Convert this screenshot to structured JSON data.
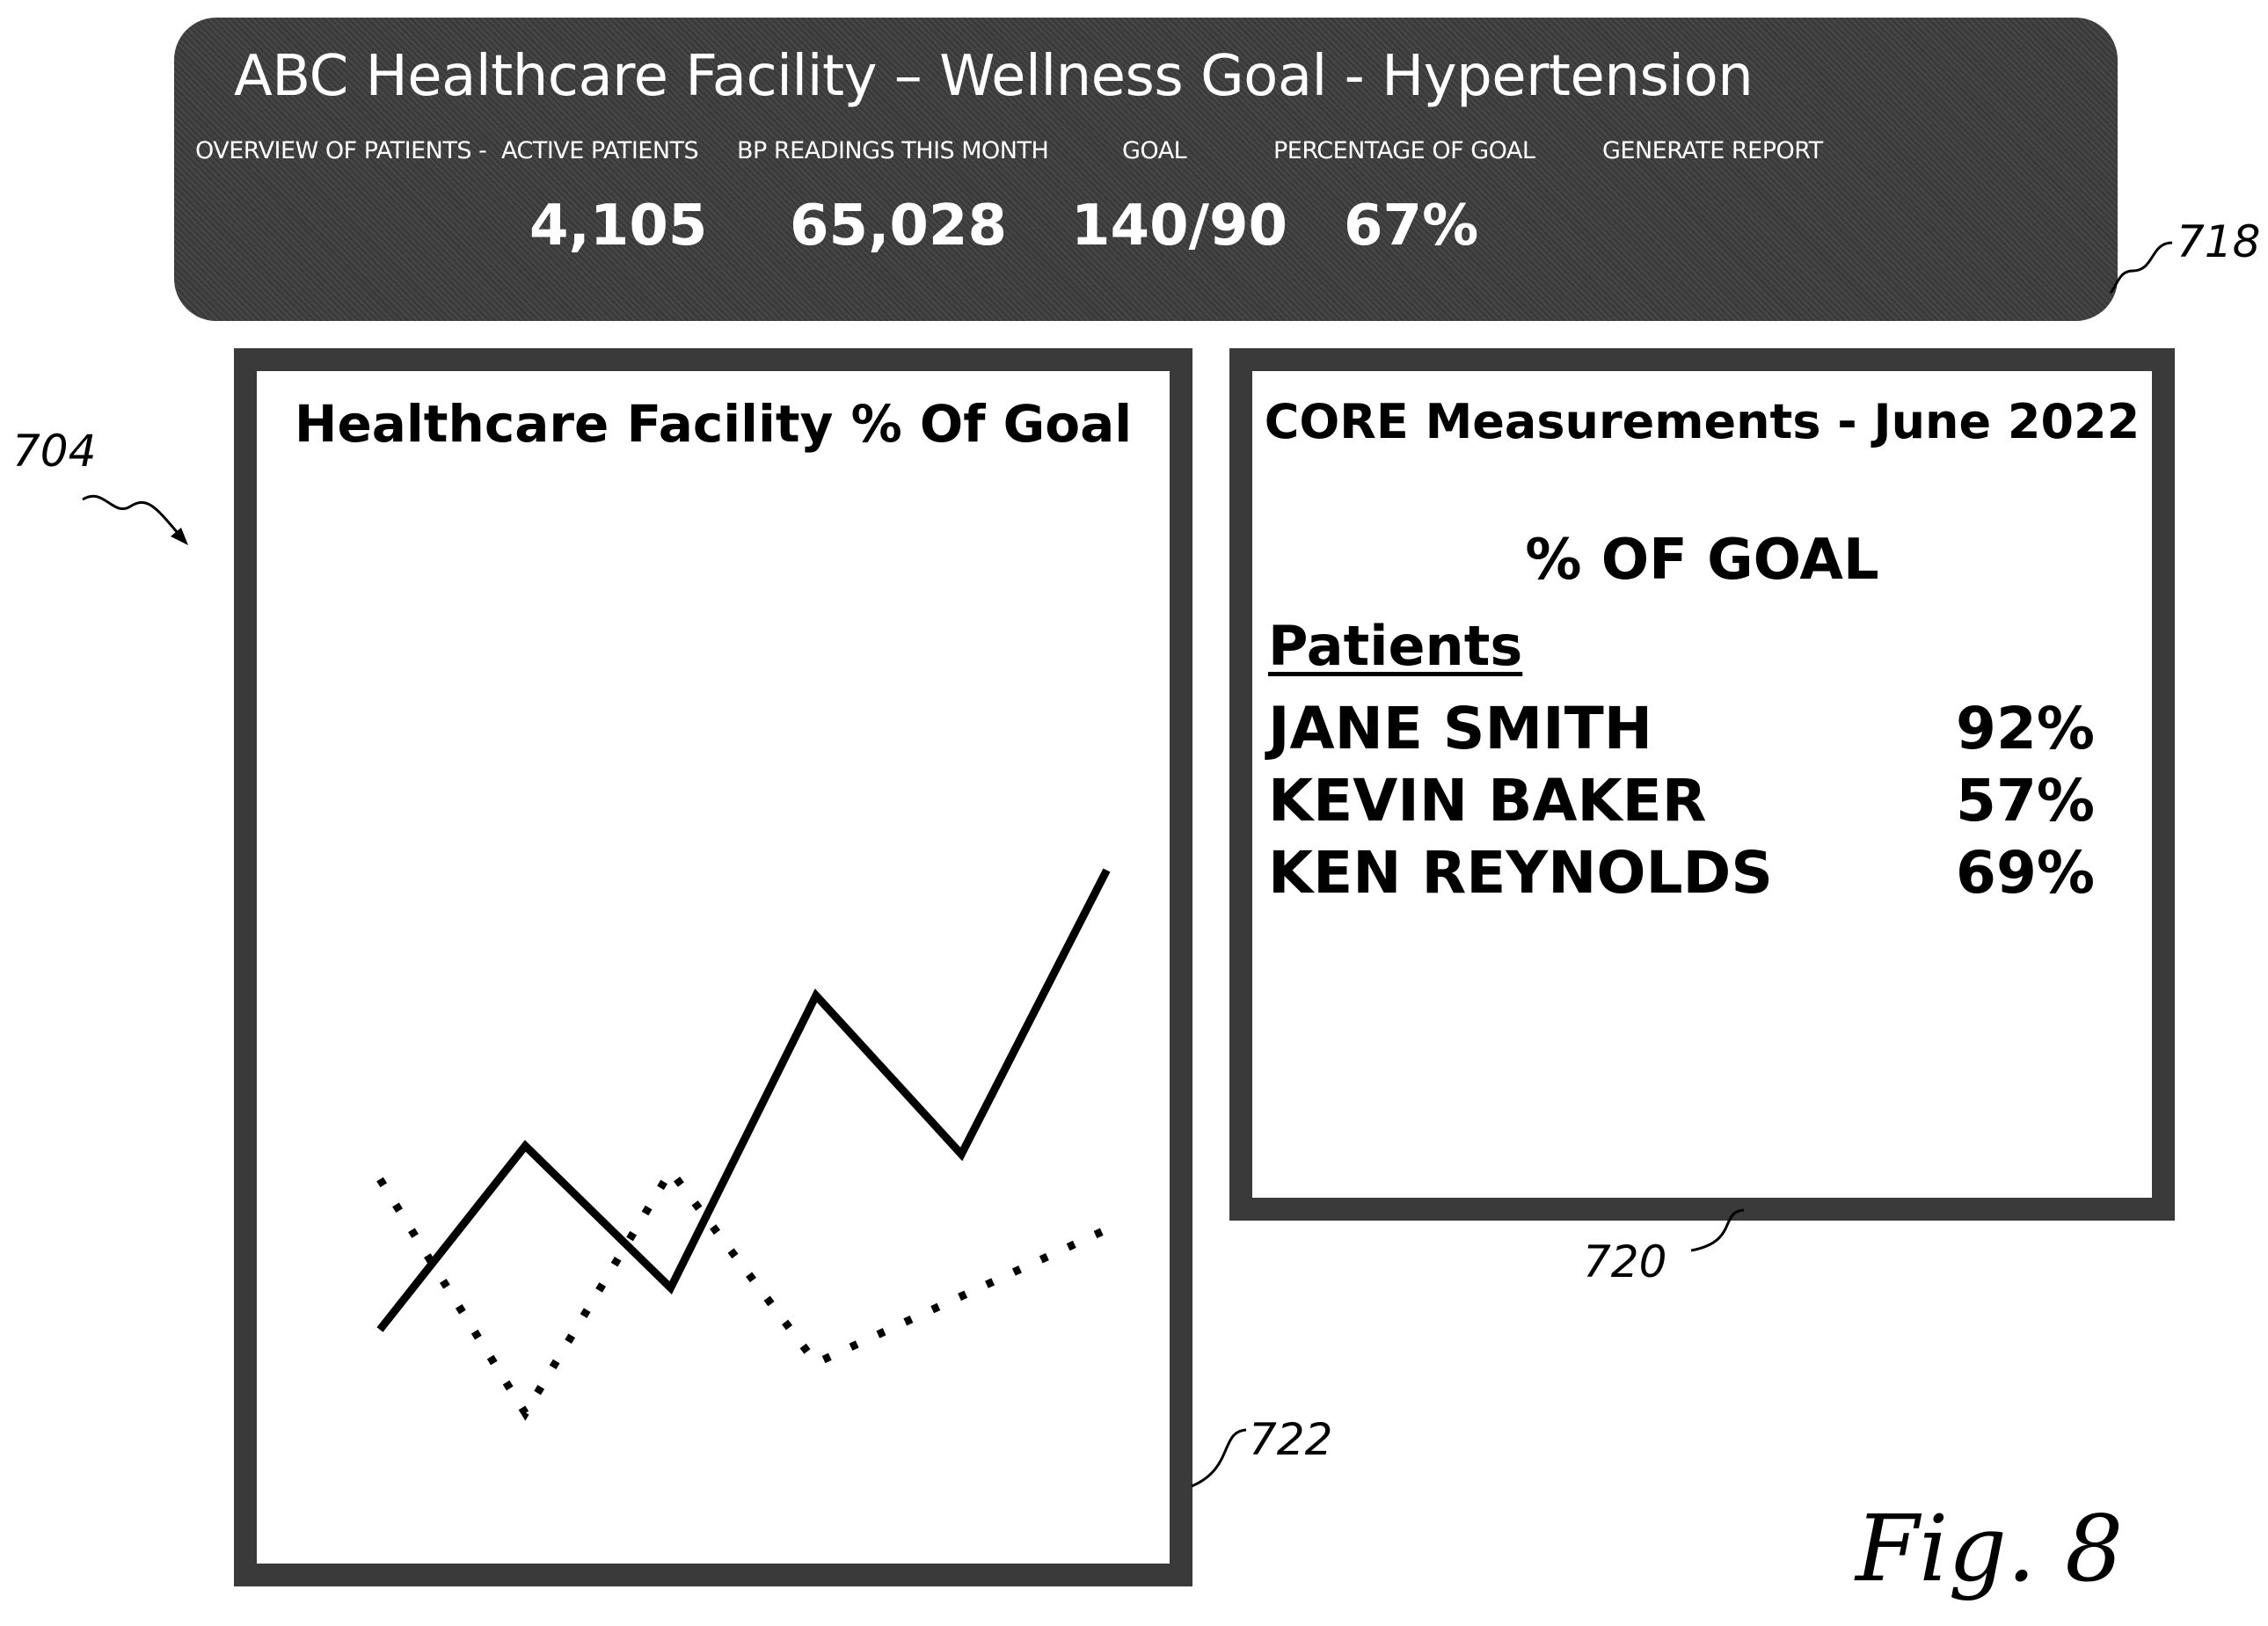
{
  "header": {
    "title": "ABC Healthcare Facility – Wellness Goal - Hypertension",
    "overview_label": "OVERVIEW OF PATIENTS -",
    "stats": [
      {
        "label": "ACTIVE PATIENTS",
        "value": "4,105"
      },
      {
        "label": "BP READINGS THIS MONTH",
        "value": "65,028"
      },
      {
        "label": "GOAL",
        "value": "140/90"
      },
      {
        "label": "PERCENTAGE OF GOAL",
        "value": "67%"
      }
    ],
    "generate_report": "GENERATE REPORT"
  },
  "facility_chart": {
    "title": "Healthcare Facility % Of Goal"
  },
  "chart_data": {
    "type": "line",
    "title": "Healthcare Facility % Of Goal",
    "xlabel": "",
    "ylabel": "",
    "series": [
      {
        "style": "solid",
        "x": [
          1,
          2,
          3,
          4,
          5,
          6
        ],
        "y": [
          0.2,
          0.42,
          0.25,
          0.6,
          0.41,
          0.75
        ]
      },
      {
        "style": "dotted",
        "x": [
          1,
          2,
          3,
          4,
          5,
          6
        ],
        "y": [
          0.38,
          0.1,
          0.39,
          0.16,
          0.24,
          0.32
        ]
      }
    ],
    "grid": false
  },
  "core": {
    "title": "CORE Measurements - June 2022",
    "subtitle": "% OF GOAL",
    "patients_header": "Patients",
    "patients": [
      {
        "name": "JANE SMITH",
        "pct": "92%"
      },
      {
        "name": "KEVIN BAKER",
        "pct": "57%"
      },
      {
        "name": "KEN REYNOLDS",
        "pct": "69%"
      }
    ]
  },
  "refs": {
    "r704": "704",
    "r718": "718",
    "r720": "720",
    "r722": "722",
    "fig": "Fig. 8"
  },
  "colors": {
    "panel": "#3a3a3a",
    "header_text": "#ffffff"
  }
}
